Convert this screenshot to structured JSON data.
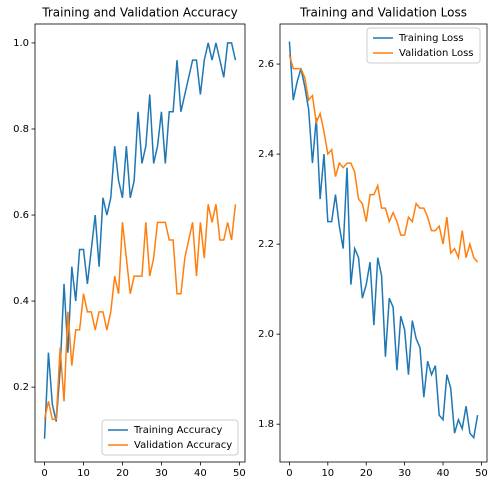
{
  "chart_data": [
    {
      "type": "line",
      "title": "Training and Validation Accuracy",
      "x": [
        0,
        1,
        2,
        3,
        4,
        5,
        6,
        7,
        8,
        9,
        10,
        11,
        12,
        13,
        14,
        15,
        16,
        17,
        18,
        19,
        20,
        21,
        22,
        23,
        24,
        25,
        26,
        27,
        28,
        29,
        30,
        31,
        32,
        33,
        34,
        35,
        36,
        37,
        38,
        39,
        40,
        41,
        42,
        43,
        44,
        45,
        46,
        47,
        48,
        49
      ],
      "series": [
        {
          "name": "Training Accuracy",
          "color": "#1f77b4",
          "values": [
            0.08,
            0.28,
            0.16,
            0.12,
            0.24,
            0.44,
            0.28,
            0.48,
            0.4,
            0.52,
            0.52,
            0.44,
            0.52,
            0.6,
            0.48,
            0.64,
            0.6,
            0.64,
            0.76,
            0.68,
            0.64,
            0.76,
            0.64,
            0.68,
            0.84,
            0.72,
            0.76,
            0.88,
            0.72,
            0.76,
            0.84,
            0.72,
            0.84,
            0.84,
            0.96,
            0.84,
            0.88,
            0.92,
            0.96,
            0.96,
            0.88,
            0.96,
            1.0,
            0.96,
            1.0,
            0.96,
            0.92,
            1.0,
            1.0,
            0.96
          ]
        },
        {
          "name": "Validation Accuracy",
          "color": "#ff7f0e",
          "values": [
            0.125,
            0.167,
            0.125,
            0.125,
            0.292,
            0.167,
            0.375,
            0.25,
            0.333,
            0.333,
            0.417,
            0.375,
            0.375,
            0.333,
            0.375,
            0.375,
            0.333,
            0.375,
            0.458,
            0.417,
            0.583,
            0.5,
            0.417,
            0.458,
            0.458,
            0.458,
            0.583,
            0.458,
            0.5,
            0.583,
            0.583,
            0.583,
            0.542,
            0.542,
            0.417,
            0.417,
            0.5,
            0.542,
            0.583,
            0.458,
            0.583,
            0.5,
            0.625,
            0.583,
            0.625,
            0.542,
            0.542,
            0.583,
            0.542,
            0.625
          ]
        }
      ],
      "xlim": [
        -2.45,
        51.45
      ],
      "xticks": [
        0,
        10,
        20,
        30,
        40,
        50
      ],
      "ylim": [
        0.026,
        1.044
      ],
      "yticks": [
        0.2,
        0.4,
        0.6,
        0.8,
        {
          "value": 1,
          "label": "1.0"
        }
      ],
      "legend": "lower right"
    },
    {
      "type": "line",
      "title": "Training and Validation Loss",
      "x": [
        0,
        1,
        2,
        3,
        4,
        5,
        6,
        7,
        8,
        9,
        10,
        11,
        12,
        13,
        14,
        15,
        16,
        17,
        18,
        19,
        20,
        21,
        22,
        23,
        24,
        25,
        26,
        27,
        28,
        29,
        30,
        31,
        32,
        33,
        34,
        35,
        36,
        37,
        38,
        39,
        40,
        41,
        42,
        43,
        44,
        45,
        46,
        47,
        48,
        49
      ],
      "series": [
        {
          "name": "Training Loss",
          "color": "#1f77b4",
          "values": [
            2.65,
            2.52,
            2.56,
            2.59,
            2.55,
            2.5,
            2.38,
            2.48,
            2.3,
            2.4,
            2.25,
            2.25,
            2.31,
            2.24,
            2.19,
            2.37,
            2.11,
            2.19,
            2.17,
            2.08,
            2.11,
            2.16,
            2.02,
            2.17,
            2.13,
            1.95,
            2.08,
            2.06,
            1.92,
            2.04,
            2.01,
            1.91,
            2.03,
            1.99,
            1.97,
            1.86,
            1.94,
            1.91,
            1.93,
            1.82,
            1.81,
            1.91,
            1.88,
            1.78,
            1.81,
            1.79,
            1.84,
            1.78,
            1.77,
            1.82
          ]
        },
        {
          "name": "Validation Loss",
          "color": "#ff7f0e",
          "values": [
            2.62,
            2.59,
            2.59,
            2.59,
            2.57,
            2.52,
            2.53,
            2.47,
            2.49,
            2.45,
            2.4,
            2.41,
            2.35,
            2.38,
            2.37,
            2.38,
            2.38,
            2.36,
            2.3,
            2.29,
            2.25,
            2.31,
            2.31,
            2.33,
            2.28,
            2.28,
            2.25,
            2.27,
            2.25,
            2.22,
            2.22,
            2.26,
            2.25,
            2.29,
            2.28,
            2.28,
            2.26,
            2.23,
            2.23,
            2.24,
            2.2,
            2.26,
            2.18,
            2.19,
            2.17,
            2.23,
            2.17,
            2.2,
            2.17,
            2.16
          ]
        }
      ],
      "xlim": [
        -2.45,
        51.45
      ],
      "xticks": [
        0,
        10,
        20,
        30,
        40,
        50
      ],
      "ylim": [
        1.716,
        2.689
      ],
      "yticks": [
        1.8,
        {
          "value": 2,
          "label": "2.0"
        },
        2.2,
        2.4,
        2.6
      ],
      "legend": "upper right"
    }
  ]
}
